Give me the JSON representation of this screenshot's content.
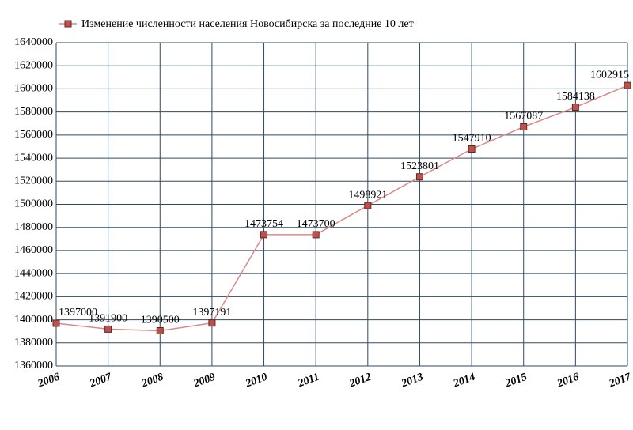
{
  "chart_data": {
    "type": "line",
    "categories": [
      "2006",
      "2007",
      "2008",
      "2009",
      "2010",
      "2011",
      "2012",
      "2013",
      "2014",
      "2015",
      "2016",
      "2017"
    ],
    "series": [
      {
        "name": "Изменение численности населения Новосибирска за последние 10 лет",
        "color": "#d98a86",
        "marker_color": "#c0504d",
        "values": [
          1397000,
          1391900,
          1390500,
          1397191,
          1473754,
          1473700,
          1498921,
          1523801,
          1547910,
          1567087,
          1584138,
          1602915
        ]
      }
    ],
    "ylim": [
      1360000,
      1640000
    ],
    "yticks": [
      1360000,
      1380000,
      1400000,
      1420000,
      1440000,
      1460000,
      1480000,
      1500000,
      1520000,
      1540000,
      1560000,
      1580000,
      1600000,
      1620000,
      1640000
    ],
    "grid": true,
    "legend": "top"
  }
}
